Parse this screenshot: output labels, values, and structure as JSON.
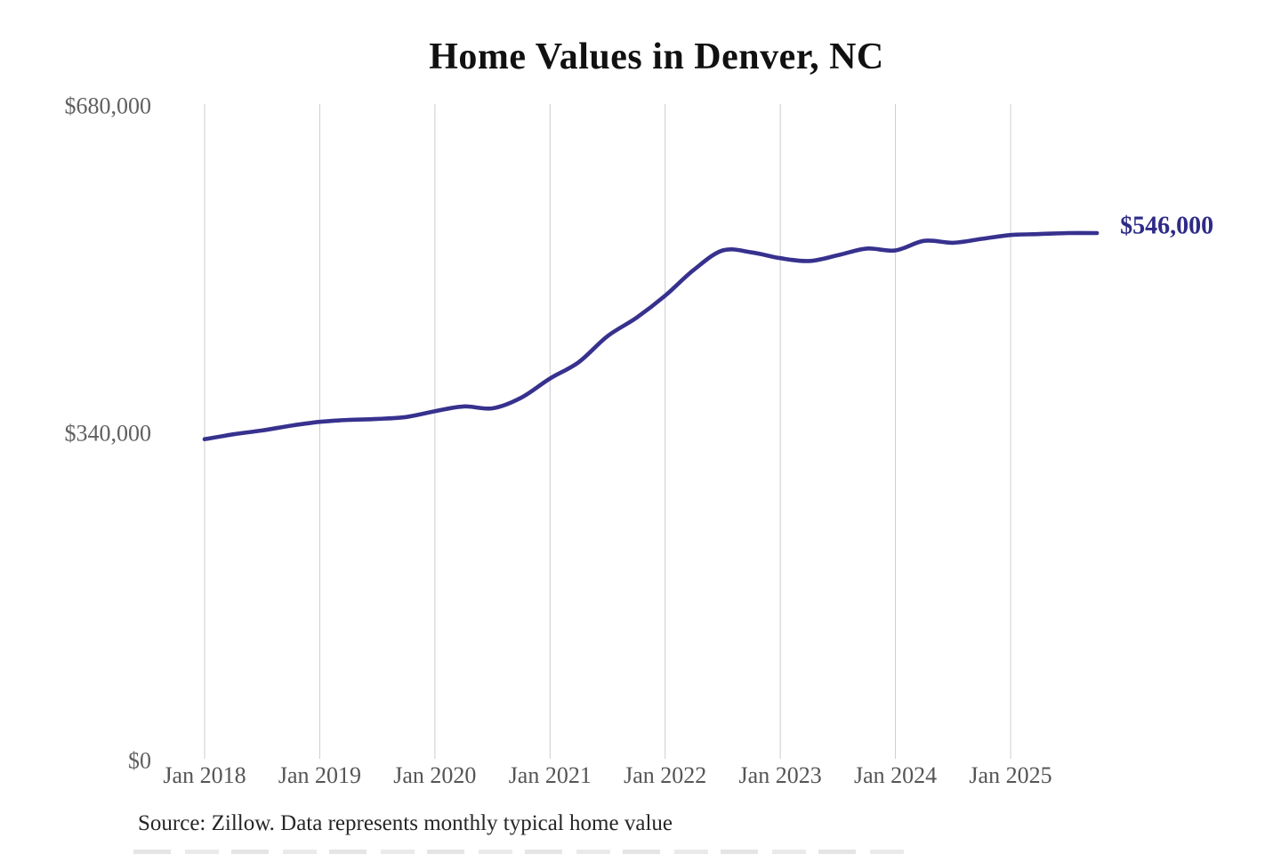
{
  "header": {
    "title": "Home Values in Denver, NC"
  },
  "footer": {
    "source_note": "Source: Zillow. Data represents monthly typical home value"
  },
  "chart_data": {
    "type": "line",
    "title": "Home Values in Denver, NC",
    "source": "Zillow",
    "legend": "none",
    "grid": "vertical-only",
    "ylim": [
      0,
      680000
    ],
    "x_range": [
      "Jan 2018",
      "Oct 2025"
    ],
    "x_tick_labels": [
      "Jan 2018",
      "Jan 2019",
      "Jan 2020",
      "Jan 2021",
      "Jan 2022",
      "Jan 2023",
      "Jan 2024",
      "Jan 2025"
    ],
    "y_ticks": [
      {
        "label": "$680,000",
        "value": 680000
      },
      {
        "label": "$340,000",
        "value": 340000
      },
      {
        "label": "$0",
        "value": 0
      }
    ],
    "series": [
      {
        "name": "Monthly typical home value",
        "months": [
          "2018-01",
          "2018-04",
          "2018-07",
          "2018-10",
          "2019-01",
          "2019-04",
          "2019-07",
          "2019-10",
          "2020-01",
          "2020-04",
          "2020-07",
          "2020-10",
          "2021-01",
          "2021-04",
          "2021-07",
          "2021-10",
          "2022-01",
          "2022-04",
          "2022-07",
          "2022-10",
          "2023-01",
          "2023-04",
          "2023-07",
          "2023-10",
          "2024-01",
          "2024-04",
          "2024-07",
          "2024-10",
          "2025-01",
          "2025-04",
          "2025-07",
          "2025-10"
        ],
        "month_index": [
          0,
          3,
          6,
          9,
          12,
          15,
          18,
          21,
          24,
          27,
          30,
          33,
          36,
          39,
          42,
          45,
          48,
          51,
          54,
          57,
          60,
          63,
          66,
          69,
          72,
          75,
          78,
          81,
          84,
          87,
          90,
          93
        ],
        "values": [
          332000,
          337000,
          341000,
          346000,
          350000,
          352000,
          353000,
          355000,
          361000,
          366000,
          364000,
          375000,
          395000,
          412000,
          439000,
          458000,
          481000,
          508000,
          528000,
          526000,
          520000,
          517000,
          523000,
          530000,
          528000,
          538000,
          536000,
          540000,
          544000,
          545000,
          546000,
          546000
        ]
      }
    ],
    "end_label": "$546,000",
    "last_value": 546000,
    "colors": {
      "line": "#37318e",
      "end_label": "#2e2b87",
      "grid": "#cccccc",
      "x_axis_text": "#555555",
      "y_axis_text": "#606060",
      "title_text": "#111111",
      "source_text": "#262626",
      "background": "#ffffff"
    }
  }
}
